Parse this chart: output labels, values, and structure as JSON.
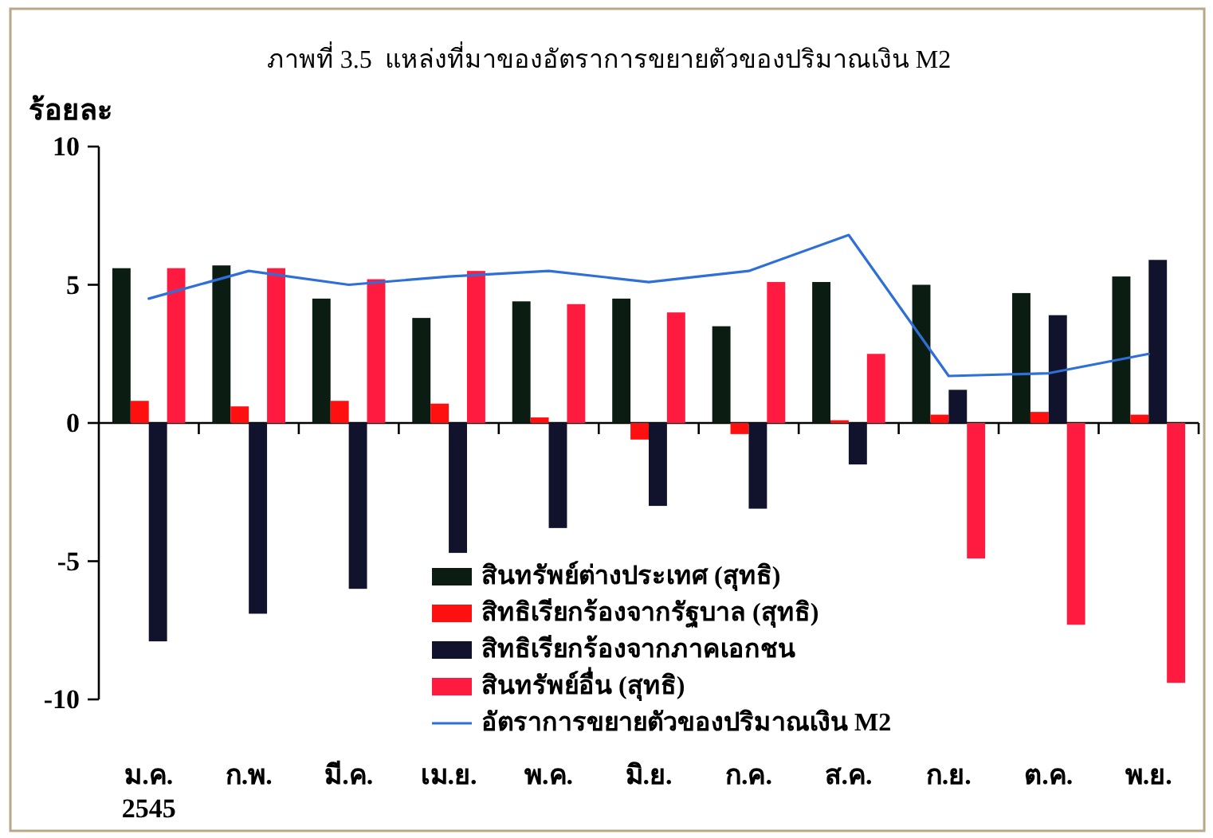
{
  "chart_data": {
    "type": "bar",
    "title": "ภาพที่ 3.5  แหล่งที่มาของอัตราการขยายตัวของปริมาณเงิน M2",
    "ylabel": "ร้อยละ",
    "categories": [
      "ม.ค.\n2545",
      "ก.พ.",
      "มี.ค.",
      "เม.ย.",
      "พ.ค.",
      "มิ.ย.",
      "ก.ค.",
      "ส.ค.",
      "ก.ย.",
      "ต.ค.",
      "พ.ย."
    ],
    "ylim": [
      -10,
      10
    ],
    "yticks": [
      -10,
      -5,
      0,
      5,
      10
    ],
    "legend": "bottom",
    "series": [
      {
        "name": "สินทรัพย์ต่างประเทศ (สุทธิ)",
        "color": "#0b1c12",
        "values": [
          5.6,
          5.7,
          4.5,
          3.8,
          4.4,
          4.5,
          3.5,
          5.1,
          5.0,
          4.7,
          5.3
        ]
      },
      {
        "name": "สิทธิเรียกร้องจากรัฐบาล (สุทธิ)",
        "color": "#ff1010",
        "values": [
          0.8,
          0.6,
          0.8,
          0.7,
          0.2,
          -0.6,
          -0.4,
          0.1,
          0.3,
          0.4,
          0.3
        ]
      },
      {
        "name": "สิทธิเรียกร้องจากภาคเอกชน",
        "color": "#11122c",
        "values": [
          -7.9,
          -6.9,
          -6.0,
          -4.7,
          -3.8,
          -3.0,
          -3.1,
          -1.5,
          1.2,
          3.9,
          5.9
        ]
      },
      {
        "name": "สินทรัพย์อื่น (สุทธิ)",
        "color": "#ff1a40",
        "values": [
          5.6,
          5.6,
          5.2,
          5.5,
          4.3,
          4.0,
          5.1,
          2.5,
          -4.9,
          -7.3,
          -9.4
        ]
      },
      {
        "name": "อัตราการขยายตัวของปริมาณเงิน M2",
        "type": "line",
        "color": "#2e6fd8",
        "values": [
          4.5,
          5.5,
          5.0,
          5.3,
          5.5,
          5.1,
          5.5,
          6.8,
          1.7,
          1.8,
          2.5
        ]
      }
    ]
  }
}
